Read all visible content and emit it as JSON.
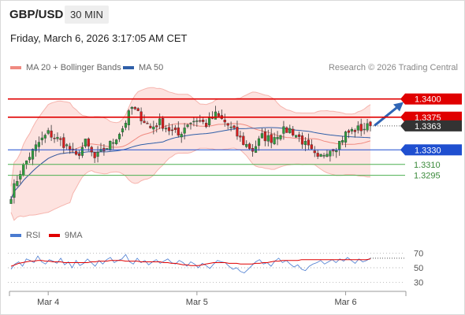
{
  "header": {
    "pair": "GBP/USD",
    "timeframe": "30 MIN",
    "datetime": "Friday, March 6, 2026 3:17:05 AM CET"
  },
  "legend": {
    "ma20": {
      "label": "MA 20 + Bollinger Bands",
      "color": "#f08a80"
    },
    "ma50": {
      "label": "MA 50",
      "color": "#2f5fa8"
    },
    "rsi": {
      "label": "RSI",
      "color": "#4a7bd0"
    },
    "ma9": {
      "label": "9MA",
      "color": "#e00000"
    }
  },
  "research_note": "Research © 2026 Trading Central",
  "chart_data": [
    {
      "type": "candlestick",
      "title": "GBP/USD",
      "ylim": [
        1.3235,
        1.343
      ],
      "current_price": 1.3363,
      "levels": [
        {
          "value": 1.34,
          "label": "1.3400",
          "kind": "resistance",
          "color": "#e00000"
        },
        {
          "value": 1.3375,
          "label": "1.3375",
          "kind": "resistance",
          "color": "#e00000"
        },
        {
          "value": 1.3363,
          "label": "1.3363",
          "kind": "last",
          "color": "#333333"
        },
        {
          "value": 1.333,
          "label": "1.3330",
          "kind": "pivot",
          "color": "#1f4fd0"
        },
        {
          "value": 1.331,
          "label": "1.3310",
          "kind": "support",
          "color": "#4caf50"
        },
        {
          "value": 1.3295,
          "label": "1.3295",
          "kind": "support",
          "color": "#4caf50"
        }
      ],
      "x_ticks": [
        {
          "label": "Mar 4",
          "index": 12
        },
        {
          "label": "Mar 5",
          "index": 60
        },
        {
          "label": "Mar 6",
          "index": 108
        }
      ],
      "n_candles": 117,
      "close_path": [
        [
          0,
          1.3268
        ],
        [
          3,
          1.33
        ],
        [
          6,
          1.3322
        ],
        [
          9,
          1.334
        ],
        [
          12,
          1.3353
        ],
        [
          15,
          1.3345
        ],
        [
          18,
          1.3335
        ],
        [
          21,
          1.332
        ],
        [
          24,
          1.334
        ],
        [
          27,
          1.3318
        ],
        [
          30,
          1.333
        ],
        [
          33,
          1.3342
        ],
        [
          36,
          1.336
        ],
        [
          39,
          1.3388
        ],
        [
          42,
          1.3375
        ],
        [
          45,
          1.336
        ],
        [
          48,
          1.3368
        ],
        [
          51,
          1.3358
        ],
        [
          54,
          1.335
        ],
        [
          57,
          1.3367
        ],
        [
          60,
          1.3372
        ],
        [
          63,
          1.3365
        ],
        [
          66,
          1.3378
        ],
        [
          69,
          1.3368
        ],
        [
          72,
          1.3355
        ],
        [
          75,
          1.334
        ],
        [
          78,
          1.333
        ],
        [
          81,
          1.3348
        ],
        [
          84,
          1.3345
        ],
        [
          87,
          1.3355
        ],
        [
          90,
          1.3358
        ],
        [
          93,
          1.3347
        ],
        [
          96,
          1.3332
        ],
        [
          99,
          1.3316
        ],
        [
          102,
          1.333
        ],
        [
          105,
          1.3335
        ],
        [
          108,
          1.3352
        ],
        [
          111,
          1.3358
        ],
        [
          114,
          1.336
        ],
        [
          116,
          1.3363
        ]
      ],
      "forecast_arrow": {
        "from": 1.3363,
        "to": 1.3398
      }
    },
    {
      "type": "line",
      "title": "RSI",
      "ylim": [
        20,
        80
      ],
      "y_ticks": [
        70,
        50,
        30
      ],
      "series": [
        {
          "name": "RSI",
          "color": "#4a7bd0",
          "values": [
            48,
            55,
            58,
            52,
            62,
            60,
            57,
            66,
            58,
            55,
            61,
            59,
            56,
            63,
            54,
            58,
            50,
            60,
            53,
            56,
            62,
            57,
            52,
            60,
            55,
            61,
            64,
            57,
            60,
            62,
            68,
            58,
            55,
            63,
            57,
            60,
            54,
            58,
            61,
            56,
            59,
            62,
            57,
            55,
            60,
            57,
            52,
            58,
            55,
            50,
            56,
            53,
            49,
            55,
            60,
            58,
            57,
            52,
            48,
            50,
            45,
            43,
            48,
            53,
            58,
            61,
            55,
            57,
            52,
            59,
            63,
            57,
            60,
            55,
            51,
            54,
            48,
            46,
            52,
            55,
            57,
            60,
            55,
            58,
            61,
            57,
            62,
            59,
            64,
            60,
            56,
            62,
            58,
            60,
            63
          ]
        },
        {
          "name": "9MA",
          "color": "#e00000",
          "values": [
            52,
            54,
            56,
            57,
            58,
            59,
            59,
            60,
            60,
            59,
            59,
            58,
            58,
            58,
            57,
            57,
            57,
            57,
            57,
            57,
            57,
            58,
            58,
            59,
            59,
            59,
            60,
            60,
            60,
            60,
            59,
            59,
            59,
            59,
            58,
            58,
            58,
            58,
            58,
            58,
            57,
            57,
            56,
            56,
            55,
            54,
            54,
            53,
            53,
            53,
            54,
            55,
            56,
            57,
            57,
            57,
            57,
            56,
            56,
            56,
            55,
            55,
            55,
            55,
            56,
            56,
            57,
            57,
            58,
            59,
            59,
            60,
            60,
            60,
            60,
            60,
            61,
            61,
            61,
            61,
            61,
            61,
            61,
            61,
            61,
            61,
            61,
            61,
            61,
            61,
            61,
            61,
            61,
            61,
            62
          ]
        }
      ]
    }
  ]
}
